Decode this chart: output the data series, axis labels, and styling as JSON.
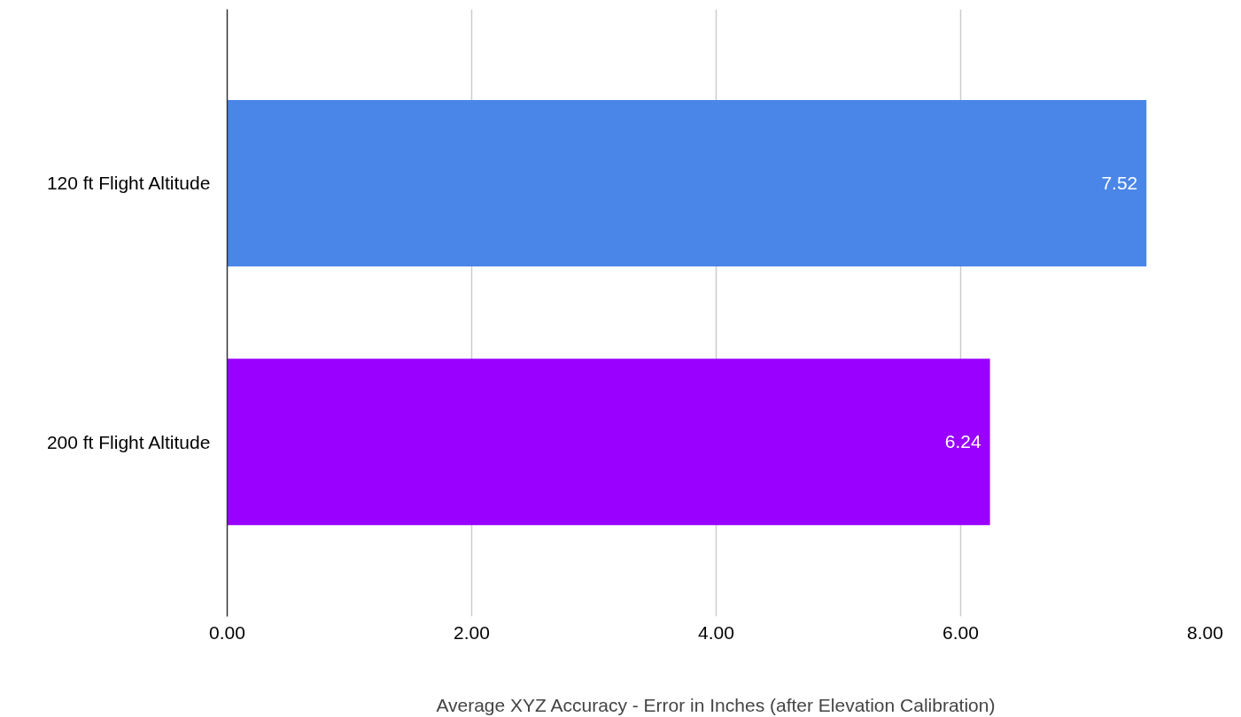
{
  "chart_data": {
    "type": "bar",
    "orientation": "horizontal",
    "categories": [
      "120 ft Flight Altitude",
      "200 ft Flight Altitude"
    ],
    "values": [
      7.52,
      6.24
    ],
    "colors": [
      "#4a86e8",
      "#9900ff"
    ],
    "xlabel": "Average XYZ Accuracy - Error in Inches (after Elevation Calibration)",
    "xlim": [
      0,
      8
    ],
    "xticks": [
      {
        "value": 0,
        "label": "0.00"
      },
      {
        "value": 2,
        "label": "2.00"
      },
      {
        "value": 4,
        "label": "4.00"
      },
      {
        "value": 6,
        "label": "6.00"
      },
      {
        "value": 8,
        "label": "8.00"
      }
    ],
    "grid": "x",
    "data_labels": true
  }
}
